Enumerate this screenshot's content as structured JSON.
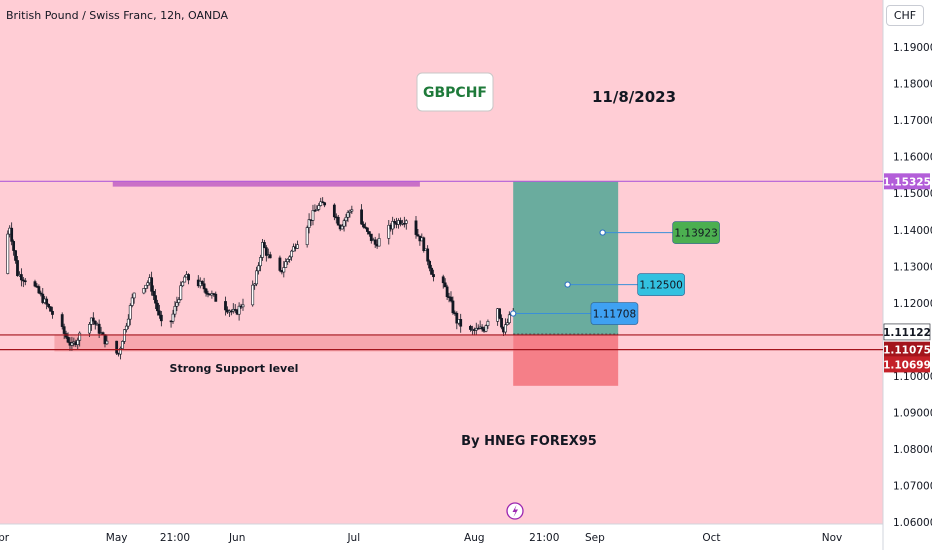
{
  "header": {
    "title": "British Pound / Swiss Franc, 12h, OANDA",
    "currency_button": "CHF"
  },
  "annotations": {
    "symbol_box": "GBPCHF",
    "date_text": "11/8/2023",
    "support_text": "Strong Support level",
    "author_text": "By HNEG FOREX95"
  },
  "colors": {
    "background": "#ffcdd5",
    "bull_candle": "#131722",
    "resistance_line": "#b35ed9",
    "resistance_zone": "#bf5fc4",
    "support_zone": "#f49aa0",
    "support_line": "#a3141c",
    "target_zone": "#6aac9e",
    "stop_zone": "#f57f88",
    "tp1_badge": "#3fa1f2",
    "tp2_badge": "#33c1e0",
    "tp3_badge": "#4caf50"
  },
  "chart_data": {
    "type": "candlestick",
    "symbol": "GBPCHF",
    "timeframe": "12h",
    "y_axis": {
      "range": [
        1.0585,
        1.2005
      ],
      "ticks": [
        1.19,
        1.18,
        1.17,
        1.16,
        1.15,
        1.14,
        1.13,
        1.12,
        1.1,
        1.09,
        1.08,
        1.07,
        1.06
      ],
      "tick_labels": [
        "1.19000",
        "1.18000",
        "1.17000",
        "1.16000",
        "1.15000",
        "1.14000",
        "1.13000",
        "1.12000",
        "1.10000",
        "1.09000",
        "1.08000",
        "1.07000",
        "1.06000"
      ]
    },
    "x_axis": {
      "range": [
        "2023-04-01",
        "2023-11-11"
      ],
      "ticks": [
        {
          "date": "2023-04-01",
          "label": "Apr"
        },
        {
          "date": "2023-05-01",
          "label": "May"
        },
        {
          "date": "2023-05-16",
          "label": "21:00"
        },
        {
          "date": "2023-06-01",
          "label": "Jun"
        },
        {
          "date": "2023-07-01",
          "label": "Jul"
        },
        {
          "date": "2023-08-01",
          "label": "Aug"
        },
        {
          "date": "2023-08-19",
          "label": "21:00"
        },
        {
          "date": "2023-09-01",
          "label": "Sep"
        },
        {
          "date": "2023-10-01",
          "label": "Oct"
        },
        {
          "date": "2023-11-01",
          "label": "Nov"
        }
      ]
    },
    "price_path": {
      "start_date": "2023-04-01",
      "end_date": "2023-08-11",
      "keypoints": [
        [
          "2023-04-01",
          1.128
        ],
        [
          "2023-04-04",
          1.141
        ],
        [
          "2023-04-06",
          1.128
        ],
        [
          "2023-04-10",
          1.125
        ],
        [
          "2023-04-15",
          1.117
        ],
        [
          "2023-04-20",
          1.108
        ],
        [
          "2023-04-25",
          1.116
        ],
        [
          "2023-04-30",
          1.107
        ],
        [
          "2023-05-02",
          1.106
        ],
        [
          "2023-05-06",
          1.123
        ],
        [
          "2023-05-10",
          1.126
        ],
        [
          "2023-05-14",
          1.11
        ],
        [
          "2023-05-19",
          1.127
        ],
        [
          "2023-05-23",
          1.125
        ],
        [
          "2023-05-28",
          1.12
        ],
        [
          "2023-06-01",
          1.117
        ],
        [
          "2023-06-06",
          1.125
        ],
        [
          "2023-06-08",
          1.136
        ],
        [
          "2023-06-12",
          1.127
        ],
        [
          "2023-06-17",
          1.137
        ],
        [
          "2023-06-22",
          1.146
        ],
        [
          "2023-06-25",
          1.148
        ],
        [
          "2023-06-28",
          1.141
        ],
        [
          "2023-07-01",
          1.146
        ],
        [
          "2023-07-05",
          1.139
        ],
        [
          "2023-07-07",
          1.136
        ],
        [
          "2023-07-12",
          1.142
        ],
        [
          "2023-07-15",
          1.143
        ],
        [
          "2023-07-19",
          1.137
        ],
        [
          "2023-07-22",
          1.127
        ],
        [
          "2023-07-25",
          1.124
        ],
        [
          "2023-07-28",
          1.115
        ],
        [
          "2023-07-31",
          1.112
        ],
        [
          "2023-08-04",
          1.113
        ],
        [
          "2023-08-07",
          1.121
        ],
        [
          "2023-08-09",
          1.112
        ],
        [
          "2023-08-11",
          1.1171
        ]
      ]
    },
    "levels": [
      {
        "name": "resistance",
        "value": 1.15325,
        "label": "1.15325"
      },
      {
        "name": "entry",
        "value": 1.11122,
        "label": "1.11122"
      },
      {
        "name": "support",
        "value": 1.11075,
        "label": "1.11075"
      },
      {
        "name": "stop",
        "value": 1.10699,
        "label": "1.10699"
      }
    ],
    "zones": {
      "resistance": {
        "from": "2023-04-30",
        "to": "2023-07-18",
        "low": 1.1518,
        "high": 1.1533
      },
      "support": {
        "from": "2023-04-15",
        "to": "2023-08-11",
        "low": 1.1067,
        "high": 1.1113
      },
      "target": {
        "from": "2023-08-11",
        "to": "2023-09-07",
        "low": 1.11122,
        "high": 1.15325
      },
      "stop": {
        "from": "2023-08-11",
        "to": "2023-09-07",
        "low": 1.0973,
        "high": 1.11122
      }
    },
    "take_profits": [
      {
        "label": "1.11708",
        "value": 1.11708,
        "point_date": "2023-08-11",
        "badge_date": "2023-08-31"
      },
      {
        "label": "1.12500",
        "value": 1.125,
        "point_date": "2023-08-25",
        "badge_date": "2023-09-12"
      },
      {
        "label": "1.13923",
        "value": 1.13923,
        "point_date": "2023-08-34",
        "badge_date": "2023-09-21"
      }
    ]
  }
}
